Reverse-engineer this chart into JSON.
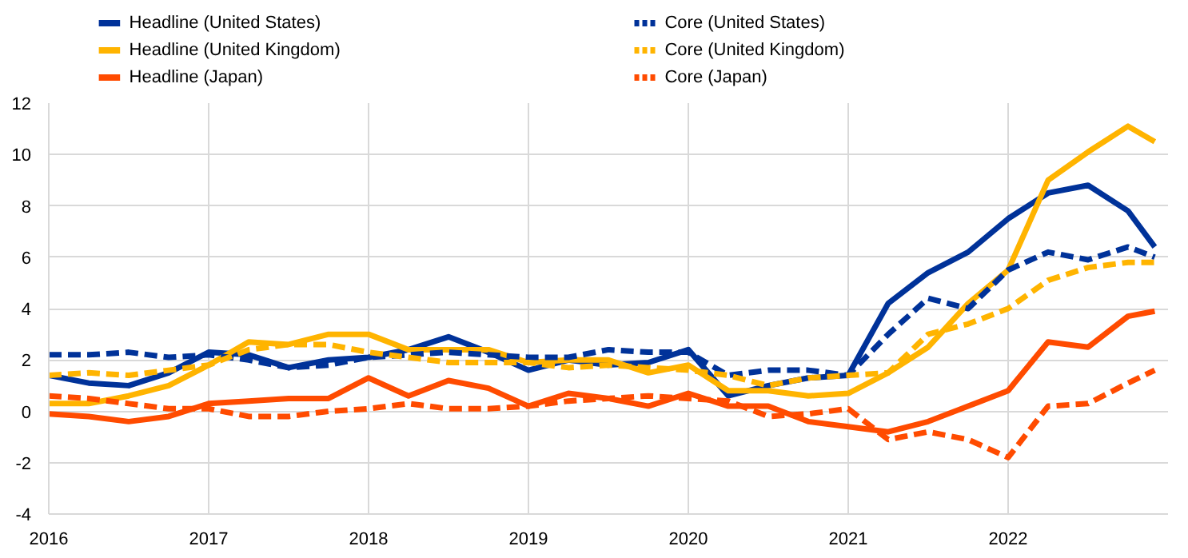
{
  "chart_data": {
    "type": "line",
    "x": [
      2016,
      2016.25,
      2016.5,
      2016.75,
      2017,
      2017.25,
      2017.5,
      2017.75,
      2018,
      2018.25,
      2018.5,
      2018.75,
      2019,
      2019.25,
      2019.5,
      2019.75,
      2020,
      2020.25,
      2020.5,
      2020.75,
      2021,
      2021.25,
      2021.5,
      2021.75,
      2022,
      2022.25,
      2022.5,
      2022.75,
      2022.917
    ],
    "xlim": [
      2016,
      2023
    ],
    "xticks": [
      2016,
      2017,
      2018,
      2019,
      2020,
      2021,
      2022
    ],
    "ylim": [
      -4,
      12
    ],
    "yticks": [
      -4,
      -2,
      0,
      2,
      4,
      6,
      8,
      10,
      12
    ],
    "grid": true,
    "legend": "top",
    "series": [
      {
        "name": "Headline (United States)",
        "color": "#003299",
        "line_style": "solid",
        "values": [
          1.4,
          1.1,
          1.0,
          1.5,
          2.3,
          2.2,
          1.7,
          2.0,
          2.1,
          2.4,
          2.9,
          2.3,
          1.6,
          2.0,
          1.8,
          1.9,
          2.4,
          0.6,
          1.0,
          1.3,
          1.4,
          4.2,
          5.4,
          6.2,
          7.5,
          8.5,
          8.8,
          7.8,
          6.4
        ]
      },
      {
        "name": "Headline (United Kingdom)",
        "color": "#ffb400",
        "line_style": "solid",
        "values": [
          0.3,
          0.3,
          0.6,
          1.0,
          1.8,
          2.7,
          2.6,
          3.0,
          3.0,
          2.4,
          2.4,
          2.4,
          1.9,
          2.0,
          2.0,
          1.5,
          1.8,
          0.8,
          0.8,
          0.6,
          0.7,
          1.5,
          2.5,
          4.2,
          5.5,
          9.0,
          10.1,
          11.1,
          10.5
        ]
      },
      {
        "name": "Headline (Japan)",
        "color": "#ff4b00",
        "line_style": "solid",
        "values": [
          -0.1,
          -0.2,
          -0.4,
          -0.2,
          0.3,
          0.4,
          0.5,
          0.5,
          1.3,
          0.6,
          1.2,
          0.9,
          0.2,
          0.7,
          0.5,
          0.2,
          0.7,
          0.2,
          0.2,
          -0.4,
          -0.6,
          -0.8,
          -0.4,
          0.2,
          0.8,
          2.7,
          2.5,
          3.7,
          3.9
        ]
      },
      {
        "name": "Core (United States)",
        "color": "#003299",
        "line_style": "dashed",
        "values": [
          2.2,
          2.2,
          2.3,
          2.1,
          2.2,
          2.0,
          1.7,
          1.8,
          2.1,
          2.2,
          2.3,
          2.2,
          2.1,
          2.1,
          2.4,
          2.3,
          2.3,
          1.4,
          1.6,
          1.6,
          1.4,
          3.0,
          4.4,
          4.0,
          5.5,
          6.2,
          5.9,
          6.4,
          6.0
        ]
      },
      {
        "name": "Core (United Kingdom)",
        "color": "#ffb400",
        "line_style": "dashed",
        "values": [
          1.4,
          1.5,
          1.4,
          1.6,
          1.8,
          2.4,
          2.6,
          2.6,
          2.3,
          2.1,
          1.9,
          1.9,
          1.9,
          1.7,
          1.8,
          1.7,
          1.6,
          1.4,
          1.0,
          1.3,
          1.4,
          1.5,
          3.0,
          3.4,
          4.0,
          5.1,
          5.6,
          5.8,
          5.8
        ]
      },
      {
        "name": "Core (Japan)",
        "color": "#ff4b00",
        "line_style": "dashed",
        "values": [
          0.6,
          0.5,
          0.3,
          0.1,
          0.1,
          -0.2,
          -0.2,
          0.0,
          0.1,
          0.3,
          0.1,
          0.1,
          0.2,
          0.4,
          0.5,
          0.6,
          0.5,
          0.4,
          -0.2,
          -0.1,
          0.1,
          -1.1,
          -0.8,
          -1.1,
          -1.8,
          0.2,
          0.3,
          1.1,
          1.6
        ]
      }
    ]
  }
}
